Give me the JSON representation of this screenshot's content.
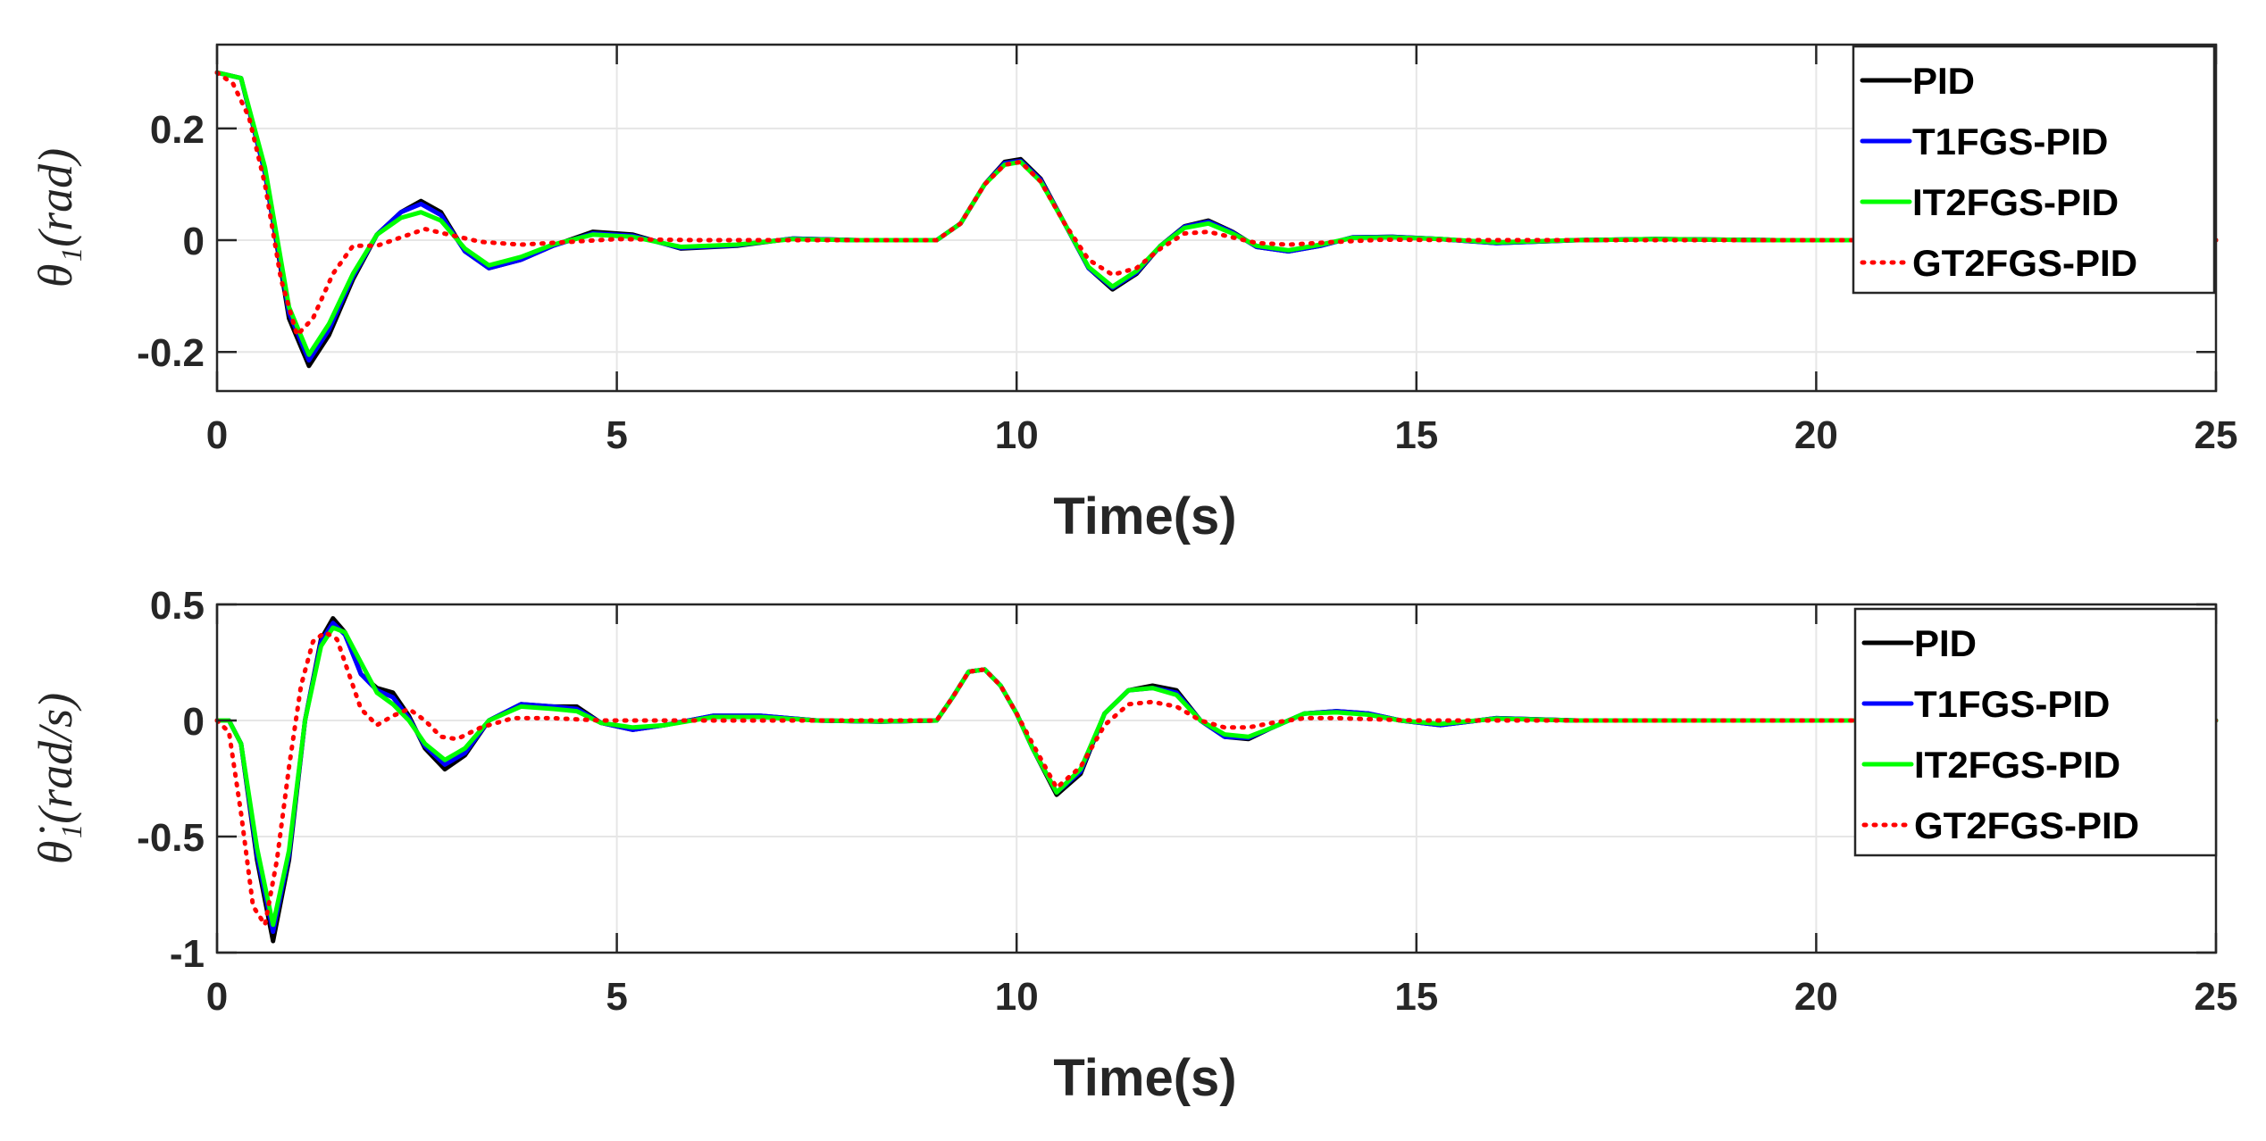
{
  "colors": {
    "PID": "#000000",
    "T1FGS-PID": "#0000ff",
    "IT2FGS-PID": "#00ff00",
    "GT2FGS-PID": "#ff0000",
    "grid": "#e6e6e6",
    "axis": "#262626"
  },
  "chart_data": [
    {
      "type": "line",
      "xlabel": "Time(s)",
      "ylabel": "θ₁(rad)",
      "xlim": [
        0,
        25
      ],
      "ylim": [
        -0.27,
        0.35
      ],
      "xticks": [
        0,
        5,
        10,
        15,
        20,
        25
      ],
      "xtick_labels": [
        "0",
        "5",
        "10",
        "15",
        "20",
        "25"
      ],
      "yticks": [
        -0.2,
        0,
        0.2
      ],
      "ytick_labels": [
        "-0.2",
        "0",
        "0.2"
      ],
      "grid": true,
      "legend": "top-right",
      "series": [
        {
          "name": "PID",
          "style": "solid",
          "x": [
            0,
            0.3,
            0.6,
            0.9,
            1.15,
            1.4,
            1.7,
            2.0,
            2.3,
            2.55,
            2.8,
            3.1,
            3.4,
            3.8,
            4.2,
            4.7,
            5.2,
            5.8,
            6.5,
            7.2,
            8.0,
            9.0,
            9.3,
            9.6,
            9.85,
            10.05,
            10.3,
            10.6,
            10.9,
            11.2,
            11.5,
            11.8,
            12.1,
            12.4,
            12.7,
            13.0,
            13.4,
            13.8,
            14.2,
            14.7,
            15.3,
            16.0,
            17.0,
            18.0,
            19.5,
            21,
            23,
            25
          ],
          "y": [
            0.3,
            0.29,
            0.12,
            -0.14,
            -0.225,
            -0.17,
            -0.07,
            0.01,
            0.05,
            0.07,
            0.05,
            -0.02,
            -0.05,
            -0.035,
            -0.01,
            0.015,
            0.01,
            -0.015,
            -0.01,
            0.003,
            0,
            0,
            0.03,
            0.1,
            0.14,
            0.145,
            0.11,
            0.03,
            -0.05,
            -0.088,
            -0.06,
            -0.01,
            0.025,
            0.035,
            0.015,
            -0.012,
            -0.02,
            -0.01,
            0.005,
            0.006,
            0.002,
            -0.005,
            0,
            0.002,
            0,
            0,
            0,
            0
          ]
        },
        {
          "name": "T1FGS-PID",
          "style": "solid",
          "x": [
            0,
            0.3,
            0.6,
            0.9,
            1.15,
            1.4,
            1.7,
            2.0,
            2.3,
            2.55,
            2.8,
            3.1,
            3.4,
            3.8,
            4.2,
            4.7,
            5.2,
            5.8,
            6.5,
            7.2,
            8.0,
            9.0,
            9.3,
            9.6,
            9.85,
            10.05,
            10.3,
            10.6,
            10.9,
            11.2,
            11.5,
            11.8,
            12.1,
            12.4,
            12.7,
            13.0,
            13.4,
            13.8,
            14.2,
            14.7,
            15.3,
            16.0,
            17.0,
            18.0,
            19.5,
            21,
            23,
            25
          ],
          "y": [
            0.3,
            0.29,
            0.12,
            -0.13,
            -0.215,
            -0.16,
            -0.065,
            0.01,
            0.05,
            0.065,
            0.045,
            -0.02,
            -0.05,
            -0.035,
            -0.01,
            0.012,
            0.008,
            -0.014,
            -0.009,
            0.003,
            0,
            0,
            0.03,
            0.1,
            0.138,
            0.142,
            0.108,
            0.03,
            -0.05,
            -0.085,
            -0.058,
            -0.01,
            0.024,
            0.033,
            0.014,
            -0.012,
            -0.02,
            -0.01,
            0.005,
            0.006,
            0.002,
            -0.005,
            0,
            0.002,
            0,
            0,
            0,
            0
          ]
        },
        {
          "name": "IT2FGS-PID",
          "style": "solid",
          "x": [
            0,
            0.3,
            0.6,
            0.9,
            1.15,
            1.4,
            1.7,
            2.0,
            2.3,
            2.55,
            2.8,
            3.1,
            3.4,
            3.8,
            4.2,
            4.7,
            5.2,
            5.8,
            6.5,
            7.2,
            8.0,
            9.0,
            9.3,
            9.6,
            9.85,
            10.05,
            10.3,
            10.6,
            10.9,
            11.2,
            11.5,
            11.8,
            12.1,
            12.4,
            12.7,
            13.0,
            13.4,
            13.8,
            14.2,
            14.7,
            15.3,
            16.0,
            17.0,
            18.0,
            19.5,
            21,
            23,
            25
          ],
          "y": [
            0.3,
            0.29,
            0.13,
            -0.12,
            -0.205,
            -0.15,
            -0.06,
            0.01,
            0.04,
            0.05,
            0.035,
            -0.015,
            -0.045,
            -0.03,
            -0.008,
            0.01,
            0.006,
            -0.012,
            -0.008,
            0.002,
            0,
            0,
            0.03,
            0.1,
            0.135,
            0.14,
            0.105,
            0.03,
            -0.048,
            -0.083,
            -0.055,
            -0.01,
            0.022,
            0.03,
            0.012,
            -0.01,
            -0.018,
            -0.008,
            0.004,
            0.005,
            0.002,
            -0.004,
            0,
            0.002,
            0,
            0,
            0,
            0
          ]
        },
        {
          "name": "GT2FGS-PID",
          "style": "dotted",
          "x": [
            0,
            0.2,
            0.4,
            0.6,
            0.8,
            1.0,
            1.2,
            1.45,
            1.7,
            2.0,
            2.3,
            2.6,
            2.9,
            3.3,
            3.8,
            4.3,
            5.0,
            6.0,
            7.0,
            8.0,
            9.0,
            9.3,
            9.6,
            9.85,
            10.05,
            10.3,
            10.6,
            10.9,
            11.2,
            11.5,
            11.8,
            12.1,
            12.4,
            12.7,
            13.0,
            13.4,
            14.0,
            14.6,
            15.5,
            17,
            19,
            21,
            23,
            25
          ],
          "y": [
            0.3,
            0.28,
            0.22,
            0.1,
            -0.07,
            -0.17,
            -0.14,
            -0.06,
            -0.01,
            -0.01,
            0.005,
            0.02,
            0.01,
            -0.003,
            -0.008,
            -0.004,
            0.002,
            0,
            0,
            0,
            0,
            0.03,
            0.1,
            0.135,
            0.14,
            0.105,
            0.03,
            -0.035,
            -0.062,
            -0.05,
            -0.015,
            0.012,
            0.015,
            0.005,
            -0.005,
            -0.008,
            -0.003,
            0.001,
            0,
            0,
            0,
            0,
            0,
            0
          ]
        }
      ]
    },
    {
      "type": "line",
      "xlabel": "Time(s)",
      "ylabel": "θ̇₁(rad/s)",
      "xlim": [
        0,
        25
      ],
      "ylim": [
        -1.0,
        0.5
      ],
      "xticks": [
        0,
        5,
        10,
        15,
        20,
        25
      ],
      "xtick_labels": [
        "0",
        "5",
        "10",
        "15",
        "20",
        "25"
      ],
      "yticks": [
        -1,
        -0.5,
        0,
        0.5
      ],
      "ytick_labels": [
        "-1",
        "-0.5",
        "0",
        "0.5"
      ],
      "grid": true,
      "legend": "top-right",
      "series": [
        {
          "name": "PID",
          "style": "solid",
          "x": [
            0,
            0.15,
            0.3,
            0.5,
            0.7,
            0.9,
            1.1,
            1.3,
            1.45,
            1.6,
            1.8,
            2.0,
            2.2,
            2.4,
            2.6,
            2.85,
            3.1,
            3.4,
            3.8,
            4.2,
            4.5,
            4.8,
            5.2,
            5.6,
            6.2,
            6.8,
            7.5,
            8.3,
            9.0,
            9.2,
            9.4,
            9.6,
            9.8,
            10.0,
            10.2,
            10.5,
            10.8,
            11.1,
            11.4,
            11.7,
            12.0,
            12.3,
            12.6,
            12.9,
            13.2,
            13.6,
            14.0,
            14.4,
            14.8,
            15.3,
            16.0,
            17.0,
            18.0,
            19.5,
            21,
            23,
            25
          ],
          "y": [
            0,
            0,
            -0.1,
            -0.6,
            -0.95,
            -0.6,
            0.0,
            0.35,
            0.44,
            0.38,
            0.2,
            0.14,
            0.12,
            0.02,
            -0.12,
            -0.21,
            -0.15,
            0.0,
            0.07,
            0.06,
            0.06,
            -0.01,
            -0.04,
            -0.02,
            0.02,
            0.02,
            0,
            -0.005,
            0,
            0.1,
            0.21,
            0.22,
            0.15,
            0.03,
            -0.12,
            -0.32,
            -0.23,
            0.03,
            0.13,
            0.15,
            0.13,
            0.0,
            -0.07,
            -0.08,
            -0.03,
            0.03,
            0.04,
            0.03,
            0.0,
            -0.02,
            0.01,
            0,
            0,
            0,
            0,
            0,
            0
          ]
        },
        {
          "name": "T1FGS-PID",
          "style": "solid",
          "x": [
            0,
            0.15,
            0.3,
            0.5,
            0.7,
            0.9,
            1.1,
            1.3,
            1.45,
            1.6,
            1.8,
            2.0,
            2.2,
            2.4,
            2.6,
            2.85,
            3.1,
            3.4,
            3.8,
            4.2,
            4.5,
            4.8,
            5.2,
            5.6,
            6.2,
            6.8,
            7.5,
            8.3,
            9.0,
            9.2,
            9.4,
            9.6,
            9.8,
            10.0,
            10.2,
            10.5,
            10.8,
            11.1,
            11.4,
            11.7,
            12.0,
            12.3,
            12.6,
            12.9,
            13.2,
            13.6,
            14.0,
            14.4,
            14.8,
            15.3,
            16.0,
            17.0,
            18.0,
            19.5,
            21,
            23,
            25
          ],
          "y": [
            0,
            0,
            -0.1,
            -0.58,
            -0.91,
            -0.58,
            0.0,
            0.34,
            0.42,
            0.37,
            0.2,
            0.13,
            0.1,
            0.01,
            -0.11,
            -0.19,
            -0.14,
            0.0,
            0.07,
            0.06,
            0.05,
            -0.01,
            -0.04,
            -0.02,
            0.02,
            0.02,
            0,
            -0.005,
            0,
            0.1,
            0.21,
            0.22,
            0.15,
            0.03,
            -0.12,
            -0.31,
            -0.22,
            0.03,
            0.13,
            0.14,
            0.12,
            0.0,
            -0.07,
            -0.075,
            -0.03,
            0.03,
            0.04,
            0.03,
            0.0,
            -0.02,
            0.01,
            0,
            0,
            0,
            0,
            0,
            0
          ]
        },
        {
          "name": "IT2FGS-PID",
          "style": "solid",
          "x": [
            0,
            0.15,
            0.3,
            0.5,
            0.7,
            0.9,
            1.1,
            1.3,
            1.45,
            1.6,
            1.8,
            2.0,
            2.2,
            2.4,
            2.6,
            2.85,
            3.1,
            3.4,
            3.8,
            4.2,
            4.5,
            4.8,
            5.2,
            5.6,
            6.2,
            6.8,
            7.5,
            8.3,
            9.0,
            9.2,
            9.4,
            9.6,
            9.8,
            10.0,
            10.2,
            10.5,
            10.8,
            11.1,
            11.4,
            11.7,
            12.0,
            12.3,
            12.6,
            12.9,
            13.2,
            13.6,
            14.0,
            14.4,
            14.8,
            15.3,
            16.0,
            17.0,
            18.0,
            19.5,
            21,
            23,
            25
          ],
          "y": [
            0,
            0,
            -0.1,
            -0.55,
            -0.88,
            -0.56,
            0.0,
            0.32,
            0.4,
            0.38,
            0.25,
            0.12,
            0.07,
            0.0,
            -0.1,
            -0.17,
            -0.12,
            0.0,
            0.06,
            0.05,
            0.04,
            -0.01,
            -0.03,
            -0.02,
            0.015,
            0.015,
            0,
            -0.004,
            0,
            0.1,
            0.21,
            0.22,
            0.15,
            0.03,
            -0.12,
            -0.31,
            -0.21,
            0.03,
            0.13,
            0.14,
            0.11,
            0.0,
            -0.06,
            -0.07,
            -0.03,
            0.03,
            0.035,
            0.025,
            0.0,
            -0.015,
            0.008,
            0,
            0,
            0,
            0,
            0,
            0
          ]
        },
        {
          "name": "GT2FGS-PID",
          "style": "dotted",
          "x": [
            0,
            0.15,
            0.3,
            0.45,
            0.6,
            0.75,
            0.9,
            1.05,
            1.2,
            1.35,
            1.5,
            1.65,
            1.8,
            2.0,
            2.2,
            2.4,
            2.6,
            2.8,
            3.0,
            3.3,
            3.7,
            4.2,
            4.8,
            5.5,
            6.5,
            7.5,
            8.5,
            9.0,
            9.2,
            9.4,
            9.6,
            9.8,
            10.0,
            10.2,
            10.5,
            10.8,
            11.1,
            11.4,
            11.7,
            12.0,
            12.3,
            12.6,
            12.9,
            13.2,
            13.6,
            14.0,
            14.5,
            15.0,
            16.0,
            17.0,
            18.0,
            19.5,
            21,
            23,
            25
          ],
          "y": [
            0,
            -0.05,
            -0.4,
            -0.8,
            -0.88,
            -0.6,
            -0.2,
            0.15,
            0.34,
            0.38,
            0.35,
            0.2,
            0.05,
            -0.02,
            0.02,
            0.05,
            0.0,
            -0.07,
            -0.08,
            -0.03,
            0.01,
            0.01,
            0.0,
            0.0,
            0,
            0,
            0,
            0,
            0.1,
            0.21,
            0.22,
            0.15,
            0.03,
            -0.1,
            -0.29,
            -0.2,
            -0.02,
            0.07,
            0.08,
            0.06,
            0.0,
            -0.03,
            -0.03,
            -0.01,
            0.01,
            0.01,
            0.005,
            0,
            0,
            0,
            0,
            0,
            0,
            0,
            0
          ]
        }
      ]
    }
  ]
}
